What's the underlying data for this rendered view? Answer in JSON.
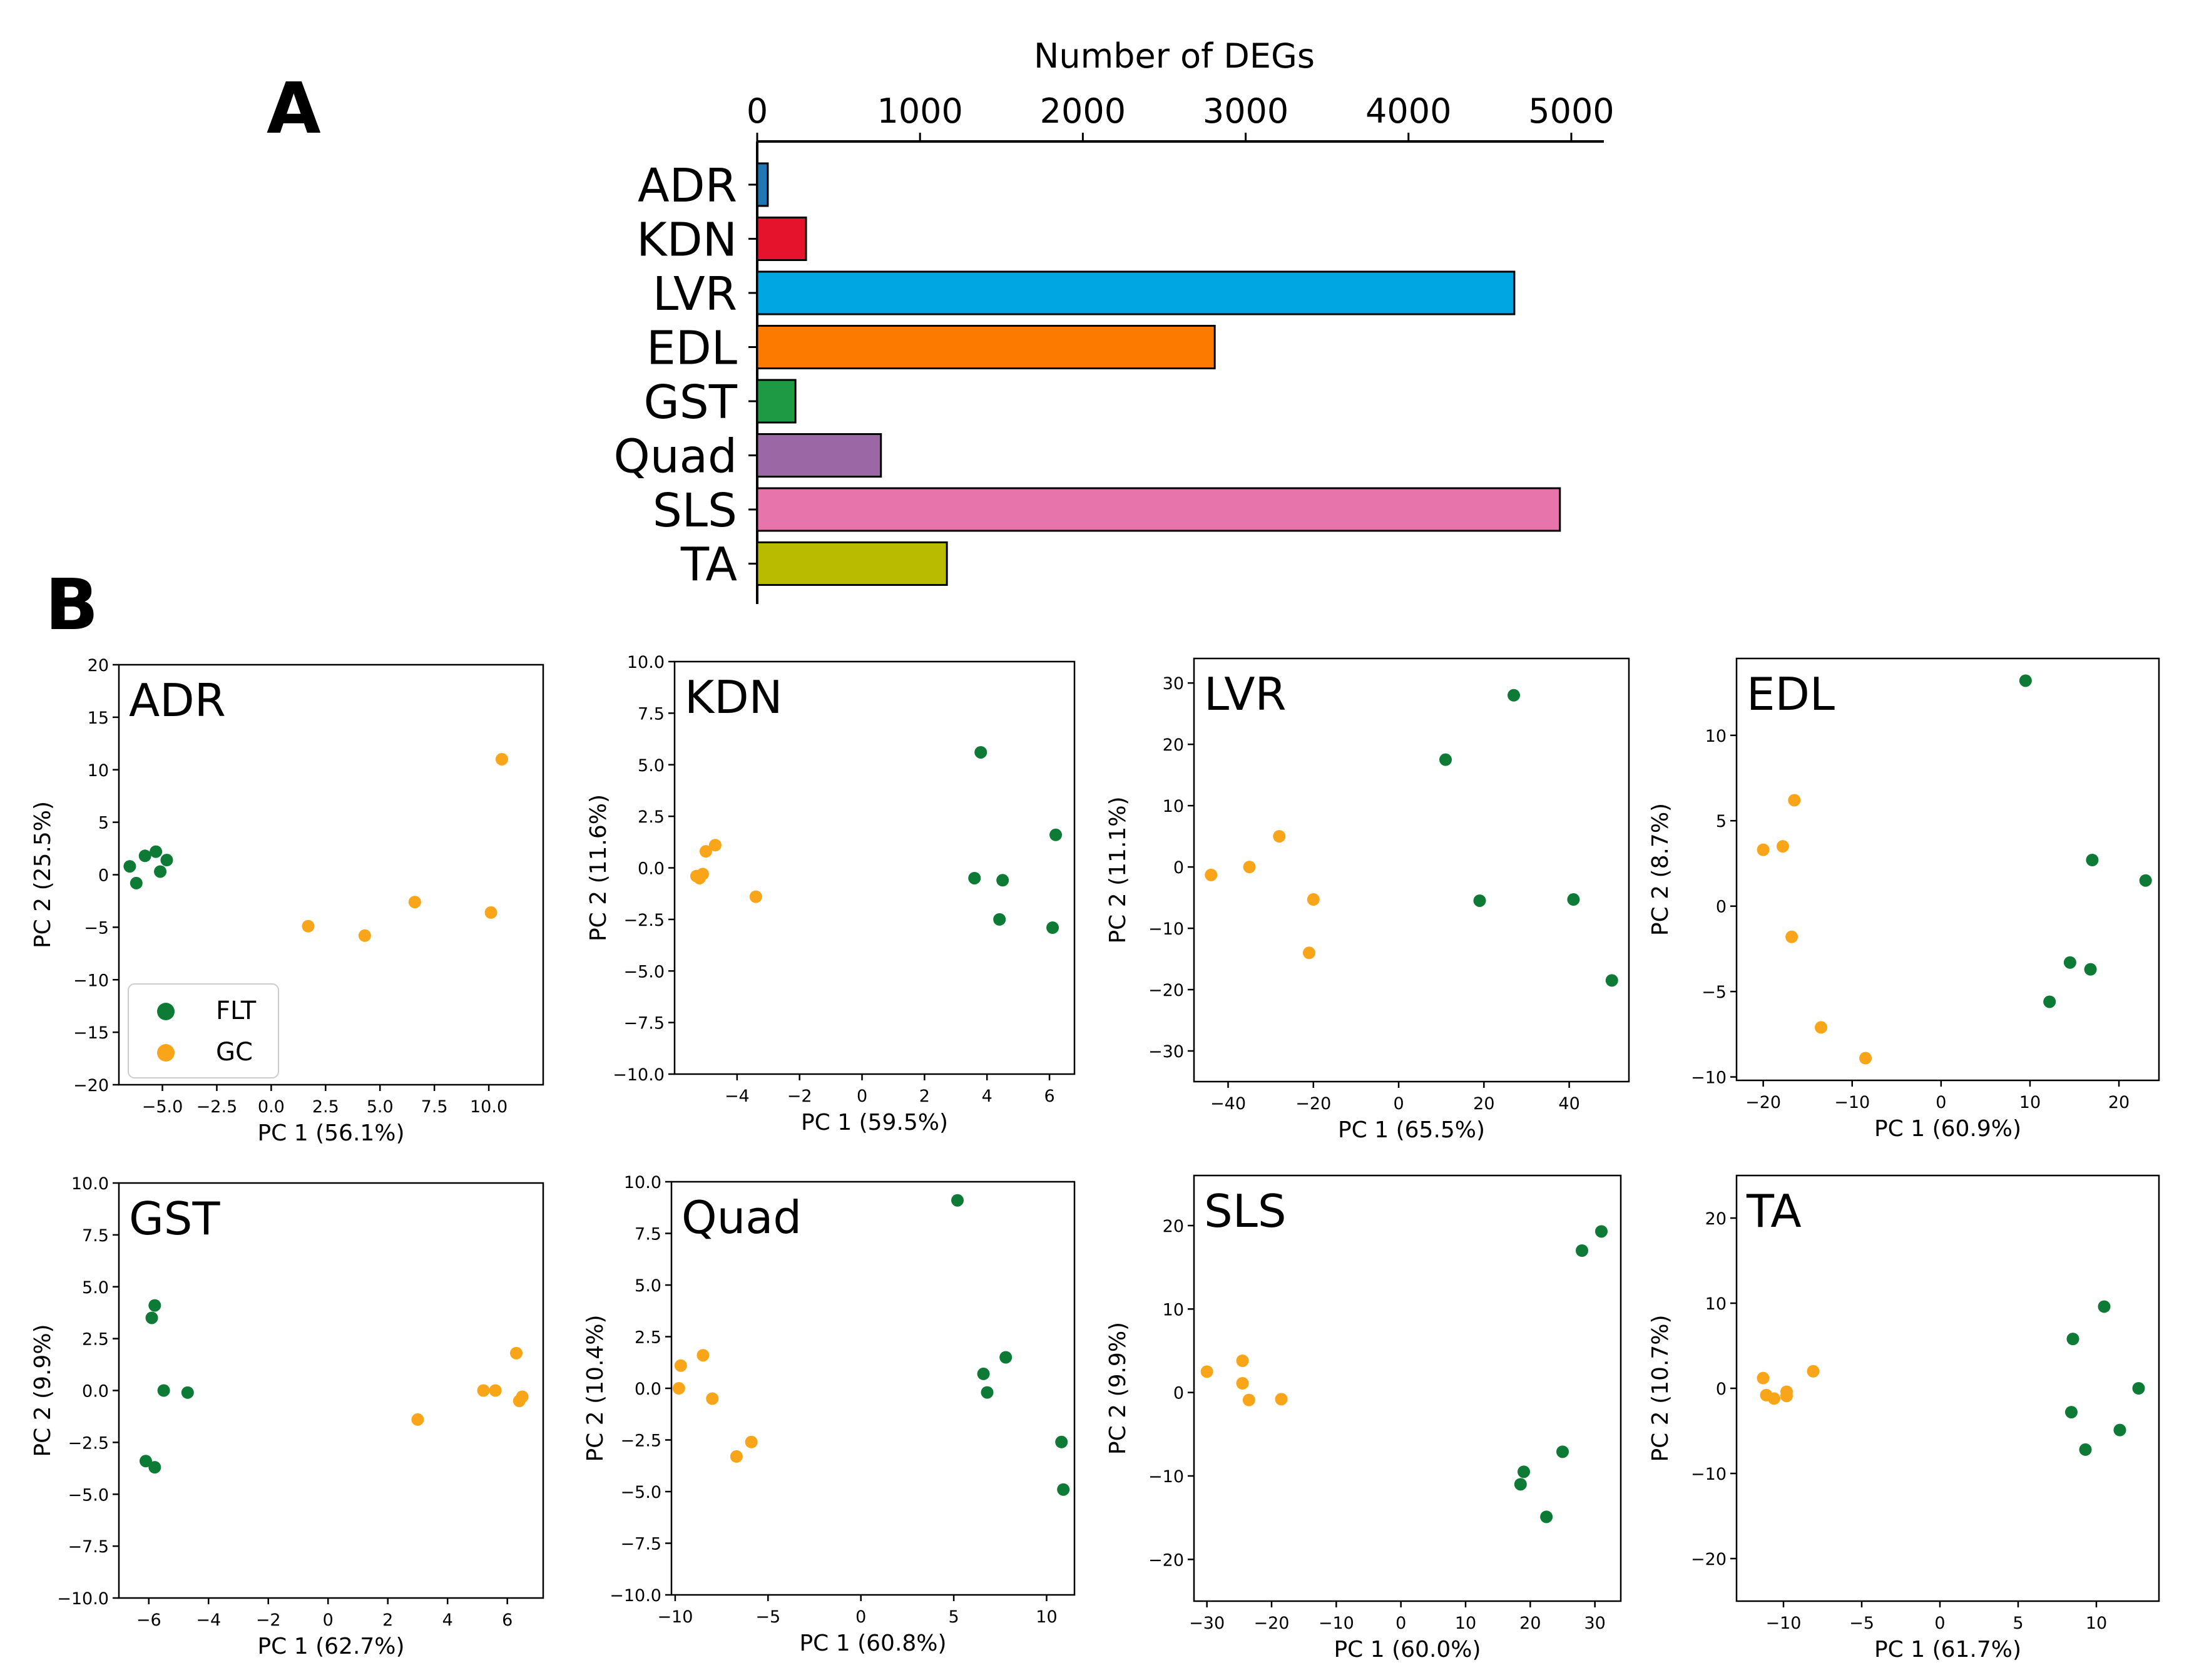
{
  "panel_labels": {
    "a": "A",
    "b": "B"
  },
  "legend": {
    "flt": "FLT",
    "gc": "GC"
  },
  "colors": {
    "flt": "#0d7a35",
    "gc": "#f9a51a"
  },
  "chart_data": [
    {
      "type": "bar",
      "orientation": "horizontal",
      "title": "Number of DEGs",
      "categories": [
        "ADR",
        "KDN",
        "LVR",
        "EDL",
        "GST",
        "Quad",
        "SLS",
        "TA"
      ],
      "values": [
        65,
        300,
        4650,
        2810,
        235,
        760,
        4930,
        1165
      ],
      "colors": [
        "#1f77b4",
        "#e5132b",
        "#00a6e2",
        "#fd7a00",
        "#1e9a45",
        "#9b67a5",
        "#e874ac",
        "#b9bb00"
      ],
      "xlim": [
        0,
        5200
      ],
      "xticks": [
        0,
        1000,
        2000,
        3000,
        4000,
        5000
      ]
    },
    {
      "type": "scatter",
      "title": "ADR",
      "xlabel": "PC 1 (56.1%)",
      "ylabel": "PC 2 (25.5%)",
      "xlim": [
        -7.0,
        12.5
      ],
      "ylim": [
        -20,
        20
      ],
      "xticks": [
        -5.0,
        -2.5,
        0.0,
        2.5,
        5.0,
        7.5,
        10.0
      ],
      "xtick_labels": [
        "−5.0",
        "−2.5",
        "0.0",
        "2.5",
        "5.0",
        "7.5",
        "10.0"
      ],
      "yticks": [
        -20,
        -15,
        -10,
        -5,
        0,
        5,
        10,
        15,
        20
      ],
      "ytick_labels": [
        "−20",
        "−15",
        "−10",
        "−5",
        "0",
        "5",
        "10",
        "15",
        "20"
      ],
      "legend": true,
      "series": [
        {
          "name": "FLT",
          "points": [
            [
              -6.5,
              0.8
            ],
            [
              -5.8,
              1.8
            ],
            [
              -5.3,
              2.2
            ],
            [
              -4.8,
              1.4
            ],
            [
              -6.2,
              -0.8
            ],
            [
              -5.1,
              0.3
            ]
          ]
        },
        {
          "name": "GC",
          "points": [
            [
              10.6,
              11.0
            ],
            [
              6.6,
              -2.6
            ],
            [
              1.7,
              -4.9
            ],
            [
              4.3,
              -5.8
            ],
            [
              10.1,
              -3.6
            ]
          ]
        }
      ]
    },
    {
      "type": "scatter",
      "title": "KDN",
      "xlabel": "PC 1 (59.5%)",
      "ylabel": "PC 2 (11.6%)",
      "xlim": [
        -6.0,
        6.8
      ],
      "ylim": [
        -10.0,
        10.0
      ],
      "xticks": [
        -4,
        -2,
        0,
        2,
        4,
        6
      ],
      "xtick_labels": [
        "−4",
        "−2",
        "0",
        "2",
        "4",
        "6"
      ],
      "yticks": [
        -10.0,
        -7.5,
        -5.0,
        -2.5,
        0.0,
        2.5,
        5.0,
        7.5,
        10.0
      ],
      "ytick_labels": [
        "−10.0",
        "−7.5",
        "−5.0",
        "−2.5",
        "0.0",
        "2.5",
        "5.0",
        "7.5",
        "10.0"
      ],
      "series": [
        {
          "name": "FLT",
          "points": [
            [
              3.8,
              5.6
            ],
            [
              6.2,
              1.6
            ],
            [
              3.6,
              -0.5
            ],
            [
              4.5,
              -0.6
            ],
            [
              4.4,
              -2.5
            ],
            [
              6.1,
              -2.9
            ]
          ]
        },
        {
          "name": "GC",
          "points": [
            [
              -5.0,
              0.8
            ],
            [
              -4.7,
              1.1
            ],
            [
              -5.3,
              -0.4
            ],
            [
              -5.1,
              -0.3
            ],
            [
              -5.2,
              -0.5
            ],
            [
              -3.4,
              -1.4
            ]
          ]
        }
      ]
    },
    {
      "type": "scatter",
      "title": "LVR",
      "xlabel": "PC 1 (65.5%)",
      "ylabel": "PC 2 (11.1%)",
      "xlim": [
        -48,
        54
      ],
      "ylim": [
        -35,
        34
      ],
      "xticks": [
        -40,
        -20,
        0,
        20,
        40
      ],
      "xtick_labels": [
        "−40",
        "−20",
        "0",
        "20",
        "40"
      ],
      "yticks": [
        -30,
        -20,
        -10,
        0,
        10,
        20,
        30
      ],
      "ytick_labels": [
        "−30",
        "−20",
        "−10",
        "0",
        "10",
        "20",
        "30"
      ],
      "series": [
        {
          "name": "FLT",
          "points": [
            [
              27,
              28
            ],
            [
              11,
              17.5
            ],
            [
              19,
              -5.5
            ],
            [
              41,
              -5.3
            ],
            [
              50,
              -18.5
            ]
          ]
        },
        {
          "name": "GC",
          "points": [
            [
              -28,
              5
            ],
            [
              -35,
              0
            ],
            [
              -44,
              -1.3
            ],
            [
              -20,
              -5.3
            ],
            [
              -21,
              -14
            ]
          ]
        }
      ]
    },
    {
      "type": "scatter",
      "title": "EDL",
      "xlabel": "PC 1 (60.9%)",
      "ylabel": "PC 2 (8.7%)",
      "xlim": [
        -23,
        24.5
      ],
      "ylim": [
        -10.2,
        14.5
      ],
      "xticks": [
        -20,
        -10,
        0,
        10,
        20
      ],
      "xtick_labels": [
        "−20",
        "−10",
        "0",
        "10",
        "20"
      ],
      "yticks": [
        -10,
        -5,
        0,
        5,
        10
      ],
      "ytick_labels": [
        "−10",
        "−5",
        "0",
        "5",
        "10"
      ],
      "series": [
        {
          "name": "FLT",
          "points": [
            [
              9.5,
              13.2
            ],
            [
              17,
              2.7
            ],
            [
              23,
              1.5
            ],
            [
              14.5,
              -3.3
            ],
            [
              16.8,
              -3.7
            ],
            [
              12.2,
              -5.6
            ]
          ]
        },
        {
          "name": "GC",
          "points": [
            [
              -16.5,
              6.2
            ],
            [
              -20,
              3.3
            ],
            [
              -17.8,
              3.5
            ],
            [
              -16.8,
              -1.8
            ],
            [
              -13.5,
              -7.1
            ],
            [
              -8.5,
              -8.9
            ]
          ]
        }
      ]
    },
    {
      "type": "scatter",
      "title": "GST",
      "xlabel": "PC 1 (62.7%)",
      "ylabel": "PC 2 (9.9%)",
      "xlim": [
        -7.0,
        7.2
      ],
      "ylim": [
        -10.0,
        10.0
      ],
      "xticks": [
        -6,
        -4,
        -2,
        0,
        2,
        4,
        6
      ],
      "xtick_labels": [
        "−6",
        "−4",
        "−2",
        "0",
        "2",
        "4",
        "6"
      ],
      "yticks": [
        -10.0,
        -7.5,
        -5.0,
        -2.5,
        0.0,
        2.5,
        5.0,
        7.5,
        10.0
      ],
      "ytick_labels": [
        "−10.0",
        "−7.5",
        "−5.0",
        "−2.5",
        "0.0",
        "2.5",
        "5.0",
        "7.5",
        "10.0"
      ],
      "series": [
        {
          "name": "FLT",
          "points": [
            [
              -5.8,
              4.1
            ],
            [
              -5.9,
              3.5
            ],
            [
              -5.5,
              0.0
            ],
            [
              -4.7,
              -0.1
            ],
            [
              -6.1,
              -3.4
            ],
            [
              -5.8,
              -3.7
            ]
          ]
        },
        {
          "name": "GC",
          "points": [
            [
              6.3,
              1.8
            ],
            [
              5.2,
              0.0
            ],
            [
              5.6,
              0.0
            ],
            [
              6.5,
              -0.3
            ],
            [
              6.4,
              -0.5
            ],
            [
              3.0,
              -1.4
            ]
          ]
        }
      ]
    },
    {
      "type": "scatter",
      "title": "Quad",
      "xlabel": "PC 1 (60.8%)",
      "ylabel": "PC 2 (10.4%)",
      "xlim": [
        -10.2,
        11.5
      ],
      "ylim": [
        -10.0,
        10.0
      ],
      "xticks": [
        -10,
        -5,
        0,
        5,
        10
      ],
      "xtick_labels": [
        "−10",
        "−5",
        "0",
        "5",
        "10"
      ],
      "yticks": [
        -10.0,
        -7.5,
        -5.0,
        -2.5,
        0.0,
        2.5,
        5.0,
        7.5,
        10.0
      ],
      "ytick_labels": [
        "−10.0",
        "−7.5",
        "−5.0",
        "−2.5",
        "0.0",
        "2.5",
        "5.0",
        "7.5",
        "10.0"
      ],
      "series": [
        {
          "name": "FLT",
          "points": [
            [
              5.2,
              9.1
            ],
            [
              7.8,
              1.5
            ],
            [
              6.6,
              0.7
            ],
            [
              6.8,
              -0.2
            ],
            [
              10.8,
              -2.6
            ],
            [
              10.9,
              -4.9
            ]
          ]
        },
        {
          "name": "GC",
          "points": [
            [
              -9.7,
              1.1
            ],
            [
              -8.5,
              1.6
            ],
            [
              -9.8,
              0.0
            ],
            [
              -8.0,
              -0.5
            ],
            [
              -5.9,
              -2.6
            ],
            [
              -6.7,
              -3.3
            ]
          ]
        }
      ]
    },
    {
      "type": "scatter",
      "title": "SLS",
      "xlabel": "PC 1 (60.0%)",
      "ylabel": "PC 2 (9.9%)",
      "xlim": [
        -32,
        34
      ],
      "ylim": [
        -25,
        26
      ],
      "xticks": [
        -30,
        -20,
        -10,
        0,
        10,
        20,
        30
      ],
      "xtick_labels": [
        "−30",
        "−20",
        "−10",
        "0",
        "10",
        "20",
        "30"
      ],
      "yticks": [
        -20,
        -10,
        0,
        10,
        20
      ],
      "ytick_labels": [
        "−20",
        "−10",
        "0",
        "10",
        "20"
      ],
      "series": [
        {
          "name": "FLT",
          "points": [
            [
              31,
              19.3
            ],
            [
              28,
              17
            ],
            [
              19,
              -9.5
            ],
            [
              25,
              -7.1
            ],
            [
              18.5,
              -11
            ],
            [
              22.5,
              -14.9
            ]
          ]
        },
        {
          "name": "GC",
          "points": [
            [
              -30,
              2.5
            ],
            [
              -24.5,
              3.8
            ],
            [
              -24.5,
              1.1
            ],
            [
              -23.5,
              -0.9
            ],
            [
              -18.5,
              -0.8
            ]
          ]
        }
      ]
    },
    {
      "type": "scatter",
      "title": "TA",
      "xlabel": "PC 1 (61.7%)",
      "ylabel": "PC 2 (10.7%)",
      "xlim": [
        -13,
        14
      ],
      "ylim": [
        -25,
        25
      ],
      "xticks": [
        -10,
        -5,
        0,
        5,
        10
      ],
      "xtick_labels": [
        "−10",
        "−5",
        "0",
        "5",
        "10"
      ],
      "yticks": [
        -20,
        -10,
        0,
        10,
        20
      ],
      "ytick_labels": [
        "−20",
        "−10",
        "0",
        "10",
        "20"
      ],
      "series": [
        {
          "name": "FLT",
          "points": [
            [
              10.5,
              9.6
            ],
            [
              8.5,
              5.8
            ],
            [
              12.7,
              0.0
            ],
            [
              8.4,
              -2.8
            ],
            [
              9.3,
              -7.2
            ],
            [
              11.5,
              -4.9
            ]
          ]
        },
        {
          "name": "GC",
          "points": [
            [
              -11.3,
              1.2
            ],
            [
              -8.1,
              2.0
            ],
            [
              -11.1,
              -0.8
            ],
            [
              -10.6,
              -1.2
            ],
            [
              -9.8,
              -0.4
            ],
            [
              -9.8,
              -0.9
            ]
          ]
        }
      ]
    }
  ]
}
